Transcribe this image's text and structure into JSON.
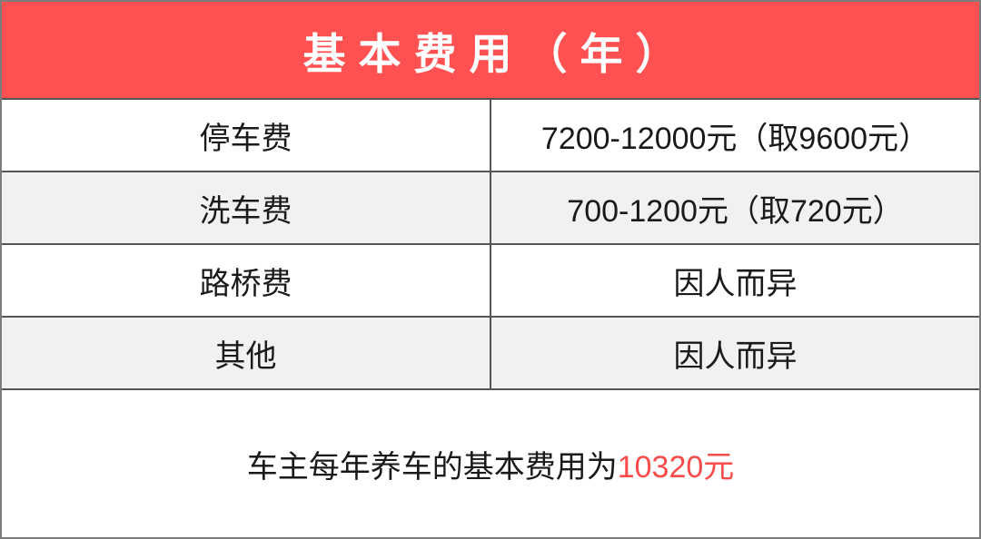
{
  "header": {
    "title": "基本费用（年）"
  },
  "table": {
    "rows": [
      {
        "label": "停车费",
        "value": "7200-12000元（取9600元）"
      },
      {
        "label": "洗车费",
        "value": "700-1200元（取720元）"
      },
      {
        "label": "路桥费",
        "value": "因人而异"
      },
      {
        "label": "其他",
        "value": "因人而异"
      }
    ]
  },
  "footer": {
    "text": "车主每年养车的基本费用为",
    "amount": "10320元"
  },
  "colors": {
    "header_bg": "#ff5052",
    "header_text": "#ffffff",
    "row_alt_bg": "#f1f1f1",
    "border": "#555555",
    "accent_red": "#fa4b4b",
    "body_text": "#1a1a1a"
  }
}
